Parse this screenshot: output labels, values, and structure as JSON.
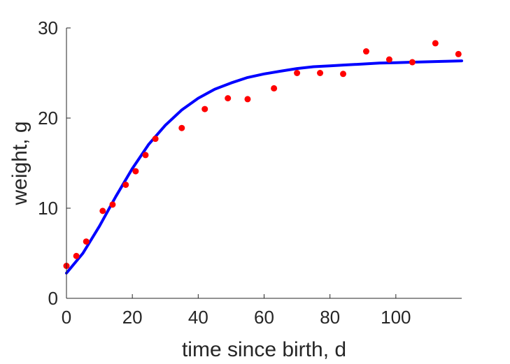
{
  "chart_data": {
    "type": "scatter",
    "xlabel": "time since birth, d",
    "ylabel": "weight, g",
    "xlim": [
      0,
      120
    ],
    "ylim": [
      0,
      30
    ],
    "xticks": [
      0,
      20,
      40,
      60,
      80,
      100
    ],
    "yticks": [
      0,
      10,
      20,
      30
    ],
    "grid": false,
    "series": [
      {
        "kind": "scatter",
        "color": "#ff0000",
        "x": [
          0,
          3,
          6,
          11,
          14,
          18,
          21,
          24,
          27,
          35,
          42,
          49,
          55,
          63,
          70,
          77,
          84,
          91,
          98,
          105,
          112,
          119
        ],
        "y": [
          3.6,
          4.7,
          6.3,
          9.7,
          10.4,
          12.6,
          14.1,
          15.9,
          17.7,
          18.9,
          21.0,
          22.2,
          22.1,
          23.3,
          25.0,
          25.0,
          24.9,
          27.4,
          26.5,
          26.2,
          28.3,
          27.1
        ]
      },
      {
        "kind": "line",
        "color": "#0000ff",
        "x": [
          0,
          5,
          10,
          15,
          20,
          25,
          30,
          35,
          40,
          45,
          50,
          55,
          60,
          65,
          70,
          75,
          80,
          85,
          90,
          95,
          100,
          105,
          110,
          115,
          120
        ],
        "y": [
          2.8,
          5.0,
          8.0,
          11.3,
          14.4,
          17.1,
          19.2,
          20.9,
          22.2,
          23.2,
          23.9,
          24.5,
          24.9,
          25.2,
          25.5,
          25.7,
          25.8,
          25.9,
          26.0,
          26.1,
          26.15,
          26.2,
          26.25,
          26.3,
          26.35
        ]
      }
    ]
  }
}
